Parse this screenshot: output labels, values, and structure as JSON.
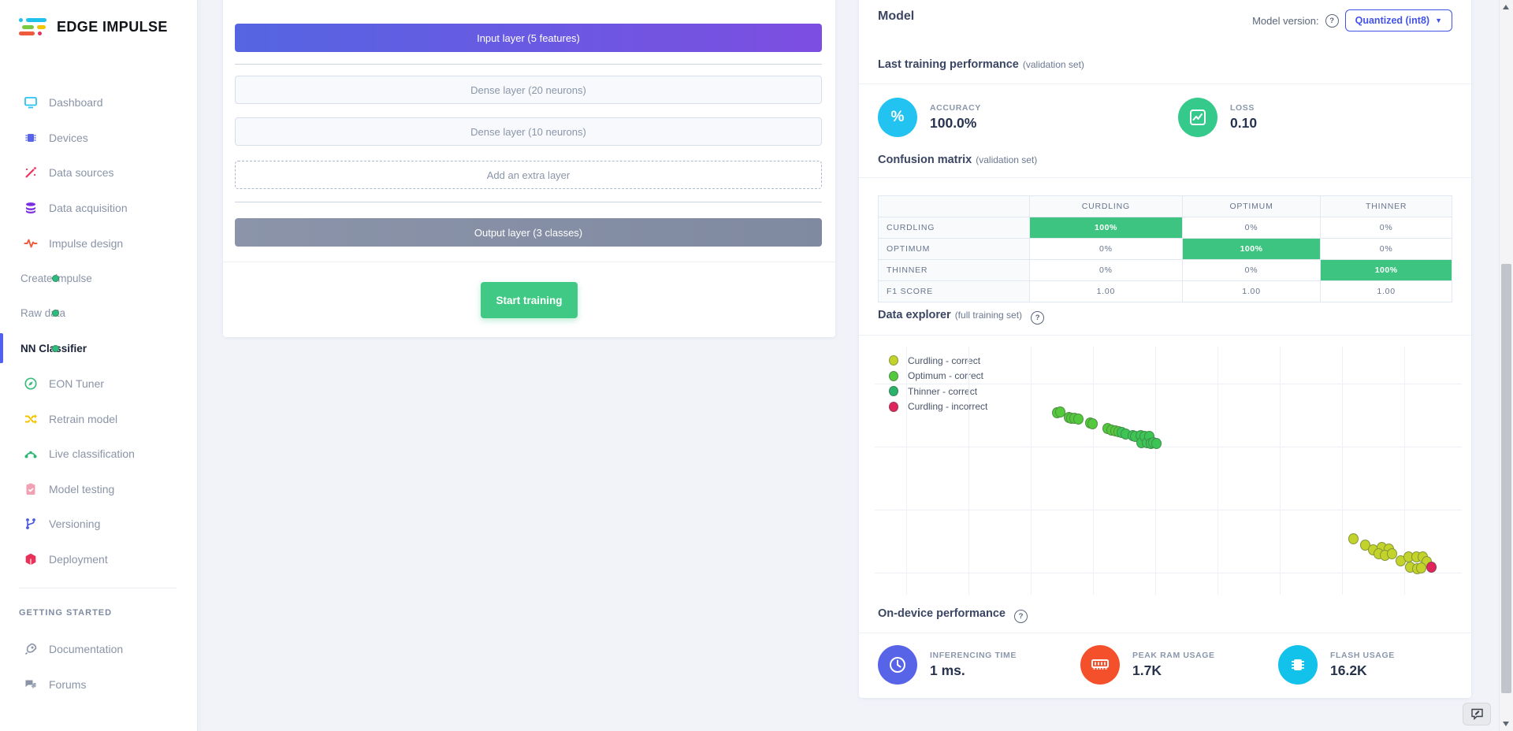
{
  "app": {
    "logo_text": "EDGE IMPULSE"
  },
  "sidebar": {
    "items": [
      {
        "id": "dashboard",
        "label": "Dashboard",
        "icon": "dashboard-icon",
        "color": "#29c4f2",
        "sub": false,
        "active": false
      },
      {
        "id": "devices",
        "label": "Devices",
        "icon": "devices-icon",
        "color": "#5864e8",
        "sub": false,
        "active": false
      },
      {
        "id": "data-sources",
        "label": "Data sources",
        "icon": "data-sources-icon",
        "color": "#f0325a",
        "sub": false,
        "active": false
      },
      {
        "id": "data-acquisition",
        "label": "Data acquisition",
        "icon": "data-acquisition-icon",
        "color": "#7b2ee0",
        "sub": false,
        "active": false
      },
      {
        "id": "impulse-design",
        "label": "Impulse design",
        "icon": "impulse-design-icon",
        "color": "#f05a3c",
        "sub": false,
        "active": false
      },
      {
        "id": "create-impulse",
        "label": "Create impulse",
        "icon": "green-dot-icon",
        "sub": true,
        "active": false
      },
      {
        "id": "raw-data",
        "label": "Raw data",
        "icon": "green-dot-icon",
        "sub": true,
        "active": false
      },
      {
        "id": "nn-classifier",
        "label": "NN Classifier",
        "icon": "green-dot-icon",
        "sub": true,
        "active": true
      },
      {
        "id": "eon-tuner",
        "label": "EON Tuner",
        "icon": "eon-tuner-icon",
        "color": "#3dbd7d",
        "sub": false,
        "active": false
      },
      {
        "id": "retrain-model",
        "label": "Retrain model",
        "icon": "retrain-model-icon",
        "color": "#f2c500",
        "sub": false,
        "active": false
      },
      {
        "id": "live-classification",
        "label": "Live classification",
        "icon": "live-classification-icon",
        "color": "#2bb673",
        "sub": false,
        "active": false
      },
      {
        "id": "model-testing",
        "label": "Model testing",
        "icon": "model-testing-icon",
        "color": "#f2a0b4",
        "sub": false,
        "active": false
      },
      {
        "id": "versioning",
        "label": "Versioning",
        "icon": "versioning-icon",
        "color": "#4a58e0",
        "sub": false,
        "active": false
      },
      {
        "id": "deployment",
        "label": "Deployment",
        "icon": "deployment-icon",
        "color": "#e8325a",
        "sub": false,
        "active": false
      }
    ],
    "section_label": "GETTING STARTED",
    "footer_items": [
      {
        "id": "documentation",
        "label": "Documentation",
        "icon": "documentation-icon",
        "color": "#8a94a6"
      },
      {
        "id": "forums",
        "label": "Forums",
        "icon": "forums-icon",
        "color": "#8a94a6"
      }
    ],
    "sub_dot_color": "#2bbd7e",
    "active_bar_color": "#5260ef"
  },
  "architecture": {
    "layers": [
      {
        "type": "input",
        "label": "Input layer (5 features)"
      },
      {
        "type": "dense",
        "label": "Dense layer (20 neurons)"
      },
      {
        "type": "dense",
        "label": "Dense layer (10 neurons)"
      },
      {
        "type": "add",
        "label": "Add an extra layer"
      },
      {
        "type": "output",
        "label": "Output layer (3 classes)"
      }
    ],
    "start_button_label": "Start training"
  },
  "model_panel": {
    "title": "Model",
    "version_label": "Model version:",
    "version_value": "Quantized (int8)",
    "training": {
      "heading": "Last training performance",
      "heading_note": "(validation set)",
      "metrics": [
        {
          "label": "ACCURACY",
          "value": "100.0%",
          "icon": "percent-icon",
          "color": "#22c3f0"
        },
        {
          "label": "LOSS",
          "value": "0.10",
          "icon": "loss-chart-icon",
          "color": "#36c98c"
        }
      ]
    },
    "confusion": {
      "heading": "Confusion matrix",
      "heading_note": "(validation set)",
      "col_headers": [
        "CURDLING",
        "OPTIMUM",
        "THINNER"
      ],
      "rows": [
        {
          "label": "CURDLING",
          "cells": [
            "100%",
            "0%",
            "0%"
          ],
          "highlight": 0
        },
        {
          "label": "OPTIMUM",
          "cells": [
            "0%",
            "100%",
            "0%"
          ],
          "highlight": 1
        },
        {
          "label": "THINNER",
          "cells": [
            "0%",
            "0%",
            "100%"
          ],
          "highlight": 2
        },
        {
          "label": "F1 SCORE",
          "cells": [
            "1.00",
            "1.00",
            "1.00"
          ],
          "highlight": -1
        }
      ],
      "highlight_color": "#3ec481"
    },
    "explorer": {
      "heading": "Data explorer",
      "heading_note": "(full training set)"
    },
    "ondevice": {
      "heading": "On-device performance",
      "metrics": [
        {
          "label": "INFERENCING TIME",
          "value": "1 ms.",
          "icon": "clock-icon",
          "color": "#5864e8"
        },
        {
          "label": "PEAK RAM USAGE",
          "value": "1.7K",
          "icon": "ram-icon",
          "color": "#f4502c"
        },
        {
          "label": "FLASH USAGE",
          "value": "16.2K",
          "icon": "flash-chip-icon",
          "color": "#12c2ea"
        }
      ]
    }
  },
  "chart_data": {
    "type": "scatter",
    "title": "Data explorer (full training set)",
    "legend_position": "top-left",
    "grid": true,
    "axes_labels_visible": false,
    "coord_note": "pixel coordinates within 1920x928 screenshot",
    "series": [
      {
        "name": "Curdling - correct",
        "color": "#c3d32b",
        "points": [
          [
            1717,
            684
          ],
          [
            1732,
            692
          ],
          [
            1742,
            698
          ],
          [
            1753,
            695
          ],
          [
            1762,
            697
          ],
          [
            1749,
            703
          ],
          [
            1757,
            705
          ],
          [
            1766,
            703
          ],
          [
            1777,
            712
          ],
          [
            1787,
            707
          ],
          [
            1797,
            707
          ],
          [
            1789,
            720
          ],
          [
            1798,
            722
          ],
          [
            1805,
            707
          ],
          [
            1810,
            713
          ],
          [
            1803,
            721
          ]
        ]
      },
      {
        "name": "Optimum - correct",
        "color": "#55c93e",
        "points": [
          [
            1341,
            524
          ],
          [
            1345,
            523
          ],
          [
            1356,
            530
          ],
          [
            1359,
            531
          ],
          [
            1363,
            531
          ],
          [
            1368,
            532
          ],
          [
            1383,
            537
          ],
          [
            1386,
            538
          ],
          [
            1405,
            544
          ],
          [
            1410,
            546
          ],
          [
            1415,
            547
          ],
          [
            1419,
            548
          ]
        ]
      },
      {
        "name": "Thinner - correct",
        "color": "#3cc454",
        "points": [
          [
            1423,
            549
          ],
          [
            1428,
            551
          ],
          [
            1437,
            553
          ],
          [
            1440,
            554
          ],
          [
            1447,
            553
          ],
          [
            1448,
            562
          ],
          [
            1452,
            554
          ],
          [
            1455,
            562
          ],
          [
            1458,
            554
          ],
          [
            1460,
            563
          ],
          [
            1463,
            562
          ],
          [
            1467,
            563
          ]
        ]
      },
      {
        "name": "Curdling - incorrect",
        "color": "#e0245c",
        "points": [
          [
            1816,
            720
          ]
        ]
      }
    ],
    "legend": [
      {
        "label": "Curdling - correct",
        "color": "#c3d32b"
      },
      {
        "label": "Optimum - correct",
        "color": "#55c93e"
      },
      {
        "label": "Thinner - correct",
        "color": "#2bb168"
      },
      {
        "label": "Curdling - incorrect",
        "color": "#e0245c"
      }
    ]
  }
}
